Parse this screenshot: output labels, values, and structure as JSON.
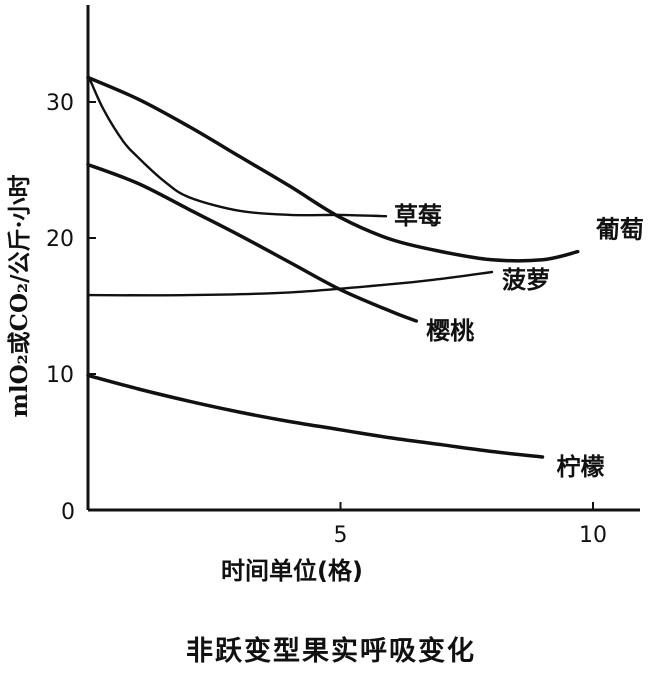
{
  "chart_data": {
    "type": "line",
    "title": "非跃变型果实呼吸变化",
    "xlabel": "时间单位(格)",
    "ylabel": "mlO₂或CO₂/公斤·小时",
    "xlim": [
      0,
      11
    ],
    "ylim": [
      0,
      37
    ],
    "xticks": [
      5,
      10
    ],
    "yticks": [
      10,
      20,
      30
    ],
    "origin_label": "0",
    "grid": false,
    "series": [
      {
        "name": "葡萄",
        "x": [
          0,
          1,
          2,
          3,
          4,
          5,
          6,
          7,
          8,
          9,
          9.7
        ],
        "y": [
          31.8,
          30.2,
          28.2,
          26,
          23.8,
          21.5,
          19.9,
          19,
          18.4,
          18.4,
          19
        ]
      },
      {
        "name": "草莓",
        "x": [
          0,
          0.3,
          0.7,
          1,
          1.5,
          2,
          3,
          4,
          5,
          5.9
        ],
        "y": [
          32,
          29.5,
          27.1,
          25.9,
          24.2,
          23,
          22,
          21.7,
          21.7,
          21.6
        ]
      },
      {
        "name": "菠萝",
        "x": [
          0,
          2,
          4,
          6,
          7,
          8
        ],
        "y": [
          15.8,
          15.8,
          16,
          16.6,
          17,
          17.5
        ]
      },
      {
        "name": "樱桃",
        "x": [
          0,
          1,
          2,
          3,
          4,
          5,
          6,
          6.5
        ],
        "y": [
          25.4,
          24,
          22.1,
          20.2,
          18.2,
          16.2,
          14.6,
          13.9
        ]
      },
      {
        "name": "柠檬",
        "x": [
          0,
          1,
          2,
          3,
          4,
          5,
          6,
          7,
          8,
          9
        ],
        "y": [
          9.9,
          8.9,
          8,
          7.2,
          6.5,
          5.9,
          5.3,
          4.8,
          4.3,
          3.9
        ]
      }
    ]
  }
}
